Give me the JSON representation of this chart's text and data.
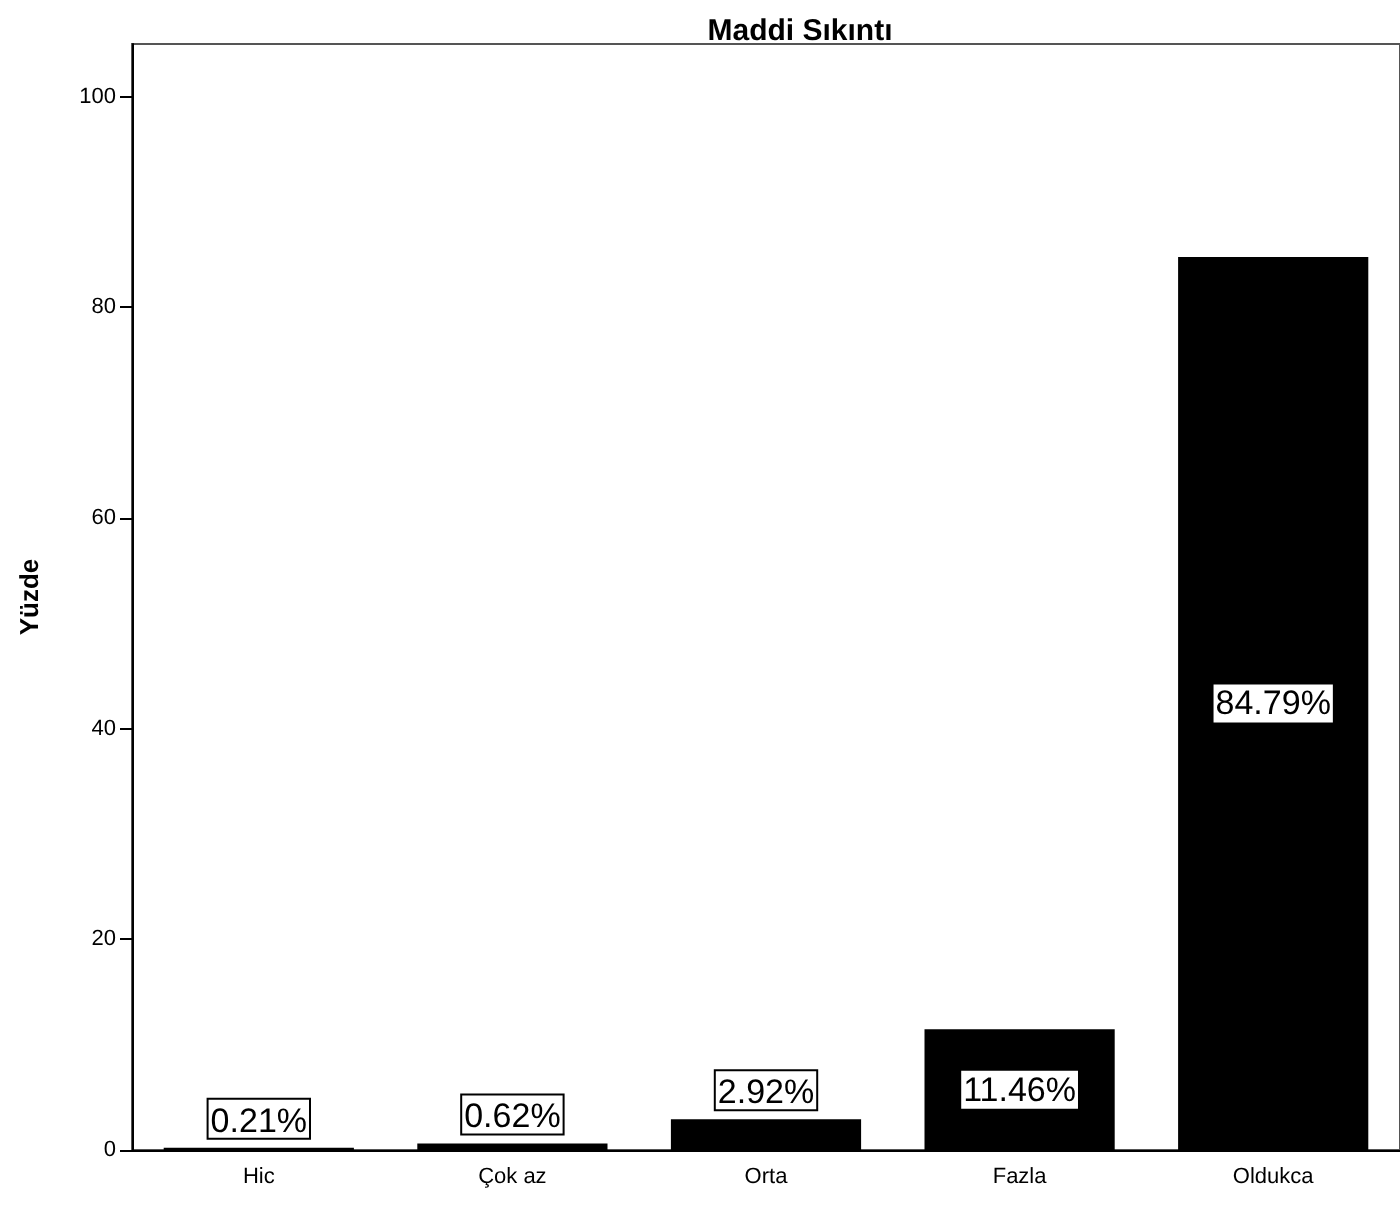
{
  "chart_data": {
    "type": "bar",
    "title": "Maddi Sıkıntı",
    "ylabel": "Yüzde",
    "categories": [
      "Hic",
      "Çok az",
      "Orta",
      "Fazla",
      "Oldukca"
    ],
    "values": [
      0.21,
      0.62,
      2.92,
      11.46,
      84.79
    ],
    "value_labels": [
      "0.21%",
      "0.62%",
      "2.92%",
      "11.46%",
      "84.79%"
    ],
    "color": "#000000",
    "ylim": [
      0,
      105
    ],
    "yticks": [
      0,
      20,
      40,
      60,
      80,
      100
    ],
    "grid": false
  }
}
